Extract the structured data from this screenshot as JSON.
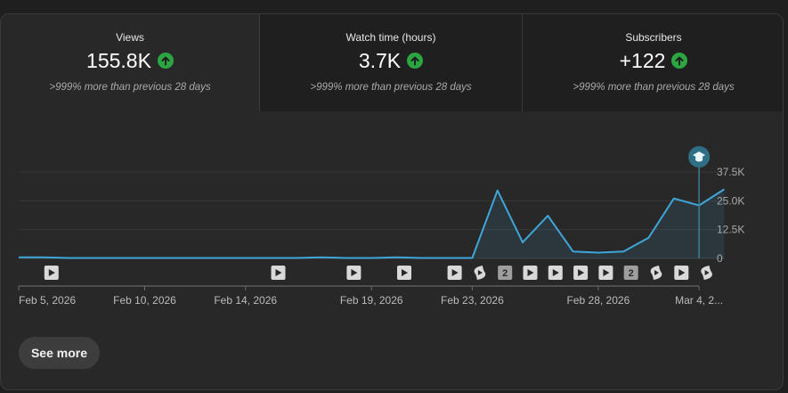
{
  "metrics": [
    {
      "label": "Views",
      "value": "155.8K",
      "compare": ">999% more than previous 28 days",
      "trend_icon": "arrow-up-circle-icon"
    },
    {
      "label": "Watch time (hours)",
      "value": "3.7K",
      "compare": ">999% more than previous 28 days",
      "trend_icon": "arrow-up-circle-icon"
    },
    {
      "label": "Subscribers",
      "value": "+122",
      "compare": ">999% more than previous 28 days",
      "trend_icon": "arrow-up-circle-icon"
    }
  ],
  "chart_data": {
    "type": "area",
    "y_ticks": [
      {
        "value": 0,
        "label": "0"
      },
      {
        "value": 12500,
        "label": "12.5K"
      },
      {
        "value": 25000,
        "label": "25.0K"
      },
      {
        "value": 37500,
        "label": "37.5K"
      }
    ],
    "ylim": [
      0,
      37500
    ],
    "x_tick_labels": [
      {
        "index": 0,
        "label": "Feb 5, 2026"
      },
      {
        "index": 5,
        "label": "Feb 10, 2026"
      },
      {
        "index": 9,
        "label": "Feb 14, 2026"
      },
      {
        "index": 14,
        "label": "Feb 19, 2026"
      },
      {
        "index": 18,
        "label": "Feb 23, 2026"
      },
      {
        "index": 23,
        "label": "Feb 28, 2026"
      },
      {
        "index": 27,
        "label": "Mar 4, 2..."
      }
    ],
    "series": [
      {
        "values": [
          500,
          500,
          200,
          200,
          200,
          200,
          200,
          200,
          200,
          200,
          200,
          200,
          500,
          200,
          200,
          500,
          200,
          200,
          200,
          29500,
          7000,
          18500,
          3000,
          2500,
          3000,
          9000,
          26000,
          23000,
          30000
        ]
      }
    ],
    "color": "#3ea6d8",
    "highlight": {
      "index": 27,
      "icon": "graduation-cap-icon"
    },
    "events": [
      {
        "index": 1,
        "kind": "video"
      },
      {
        "index": 10,
        "kind": "video"
      },
      {
        "index": 13,
        "kind": "video"
      },
      {
        "index": 15,
        "kind": "video"
      },
      {
        "index": 17,
        "kind": "video"
      },
      {
        "index": 18,
        "kind": "short"
      },
      {
        "index": 19,
        "kind": "count",
        "label": "2"
      },
      {
        "index": 20,
        "kind": "video"
      },
      {
        "index": 21,
        "kind": "video"
      },
      {
        "index": 22,
        "kind": "video"
      },
      {
        "index": 23,
        "kind": "video"
      },
      {
        "index": 24,
        "kind": "count",
        "label": "2"
      },
      {
        "index": 25,
        "kind": "short"
      },
      {
        "index": 26,
        "kind": "video"
      },
      {
        "index": 27,
        "kind": "short"
      }
    ]
  },
  "buttons": {
    "see_more": "See more"
  }
}
